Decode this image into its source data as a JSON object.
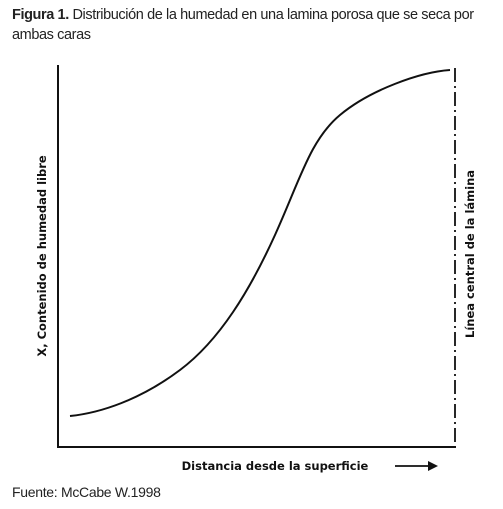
{
  "caption": {
    "label": "Figura 1.",
    "text": "Distribución de la humedad en una lamina porosa que se seca por ambas caras"
  },
  "y_axis_label": "X, Contenido de humedad libre",
  "x_axis_label": "Distancia desde la superficie",
  "centerline_label": "Línea central de la lámina",
  "source": "Fuente: McCabe W.1998"
}
